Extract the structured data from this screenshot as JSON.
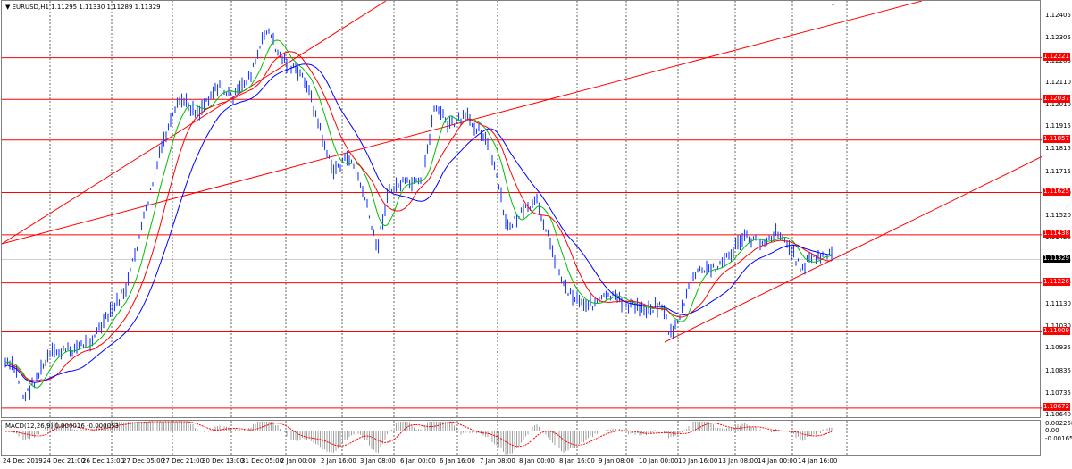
{
  "window": {
    "symbol_line": "EURUSD,H1  1.11295 1.11330 1.11289 1.11329",
    "menu_arrow_icon": "triangle-down-icon"
  },
  "colors": {
    "candle": "#1e3cff",
    "ma_fast": "#00c000",
    "ma_mid": "#ff0000",
    "ma_slow": "#0000ff",
    "level": "#ff0000",
    "grid": "#000000",
    "macd_hist": "#a0a0a0",
    "macd_signal": "#ff0000"
  },
  "price_axis": {
    "ticks": [
      "1.12405",
      "1.12305",
      "1.12205",
      "1.12110",
      "1.12010",
      "1.11915",
      "1.11815",
      "1.11715",
      "1.11620",
      "1.11520",
      "1.11425",
      "1.11325",
      "1.11225",
      "1.11130",
      "1.11030",
      "1.10935",
      "1.10835",
      "1.10735",
      "1.10640"
    ],
    "levels": [
      "1.12221",
      "1.12037",
      "1.11857",
      "1.11625",
      "1.11438",
      "1.11226",
      "1.11009",
      "1.10672"
    ],
    "current": "1.11329"
  },
  "macd": {
    "label": "MACD(12,26,9) 0.000016 -0.000053",
    "ticks": [
      "0.002258",
      "0.00",
      "-0.00165"
    ]
  },
  "time_axis": {
    "labels": [
      "24 Dec 2019",
      "24 Dec 21:00",
      "26 Dec 13:00",
      "27 Dec 05:00",
      "27 Dec 21:00",
      "30 Dec 13:00",
      "31 Dec 05:00",
      "2 Jan 00:00",
      "2 Jan 16:00",
      "3 Jan 08:00",
      "6 Jan 00:00",
      "6 Jan 16:00",
      "7 Jan 08:00",
      "8 Jan 00:00",
      "8 Jan 16:00",
      "9 Jan 08:00",
      "10 Jan 00:00",
      "10 Jan 16:00",
      "13 Jan 08:00",
      "14 Jan 00:00",
      "14 Jan 16:00"
    ]
  }
}
